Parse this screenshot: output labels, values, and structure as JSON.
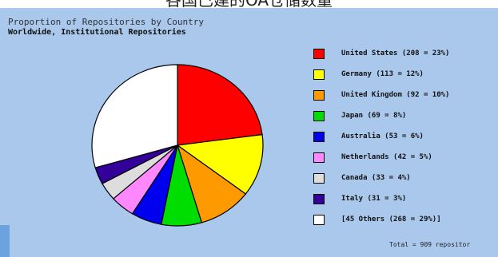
{
  "page": {
    "caption": "各国已建的OA仓储数量"
  },
  "colors": {
    "background": "#a9c8ec",
    "slice_border": "#000000"
  },
  "chart_data": {
    "type": "pie",
    "title": "Proportion of Repositories by Country",
    "subtitle": "Worldwide, Institutional Repositories",
    "series": [
      {
        "name": "United States",
        "label": "United States (208 = 23%)",
        "value": 208,
        "color": "#ff0000"
      },
      {
        "name": "Germany",
        "label": "Germany (113 = 12%)",
        "value": 113,
        "color": "#ffff00"
      },
      {
        "name": "United Kingdom",
        "label": "United Kingdom (92 = 10%)",
        "value": 92,
        "color": "#ff9900"
      },
      {
        "name": "Japan",
        "label": "Japan (69 = 8%)",
        "value": 69,
        "color": "#00dd00"
      },
      {
        "name": "Australia",
        "label": "Australia (53 = 6%)",
        "value": 53,
        "color": "#0000ee"
      },
      {
        "name": "Netherlands",
        "label": "Netherlands (42 = 5%)",
        "value": 42,
        "color": "#ff88ff"
      },
      {
        "name": "Canada",
        "label": "Canada (33 = 4%)",
        "value": 33,
        "color": "#dddddd"
      },
      {
        "name": "Italy",
        "label": "Italy (31 = 3%)",
        "value": 31,
        "color": "#330099"
      },
      {
        "name": "Others",
        "label": "[45 Others (268 = 29%)]",
        "value": 268,
        "color": "#ffffff"
      }
    ],
    "total_note": "Total = 909 repositor",
    "legend_position": "right"
  }
}
